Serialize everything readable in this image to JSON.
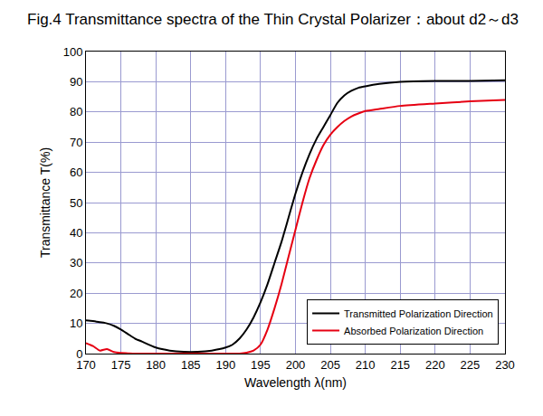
{
  "chart_data": {
    "type": "line",
    "title": "Fig.4 Transmittance spectra of the Thin Crystal Polarizer：about d2～d3",
    "x_label": "Wavelength λ(nm)",
    "y_label": "Transmittance T(%)",
    "x": [
      170,
      171,
      172,
      173,
      174,
      175,
      176,
      177,
      178,
      180,
      182,
      184,
      186,
      188,
      190,
      191,
      192,
      193,
      194,
      195,
      196,
      197,
      198,
      199,
      200,
      201,
      202,
      203,
      204,
      205,
      206,
      207,
      208,
      209,
      210,
      212,
      215,
      220,
      225,
      230
    ],
    "series": [
      {
        "name": "Transmitted Polarization Direction",
        "color": "#000000",
        "values": [
          11,
          10.8,
          10.4,
          10,
          9.2,
          8,
          6.5,
          5,
          4,
          2,
          1,
          0.6,
          0.6,
          1,
          2,
          3,
          5,
          8,
          12,
          17,
          23,
          30,
          37,
          45,
          53,
          60,
          66,
          71,
          75,
          79,
          83,
          85.5,
          87,
          88,
          88.5,
          89.3,
          90,
          90.3,
          90.3,
          90.5
        ]
      },
      {
        "name": "Absorbed Polarization Direction",
        "color": "#e60012",
        "values": [
          3.5,
          2.5,
          1,
          1.5,
          0.5,
          0.2,
          0.1,
          0,
          0,
          0,
          0,
          0,
          0,
          0,
          0,
          0,
          0,
          0.3,
          1,
          3,
          8,
          15,
          23,
          32,
          41,
          50,
          58,
          64,
          69,
          72.5,
          75,
          77,
          78.5,
          79.5,
          80.3,
          81,
          82,
          82.8,
          83.5,
          84
        ]
      }
    ],
    "xlim": [
      170,
      230
    ],
    "xticks": [
      170,
      175,
      180,
      185,
      190,
      195,
      200,
      205,
      210,
      215,
      220,
      225,
      230
    ],
    "ylim": [
      0,
      100
    ],
    "yticks": [
      0,
      10,
      20,
      30,
      40,
      50,
      60,
      70,
      80,
      90,
      100
    ],
    "grid": true,
    "legend": "bottom right"
  }
}
